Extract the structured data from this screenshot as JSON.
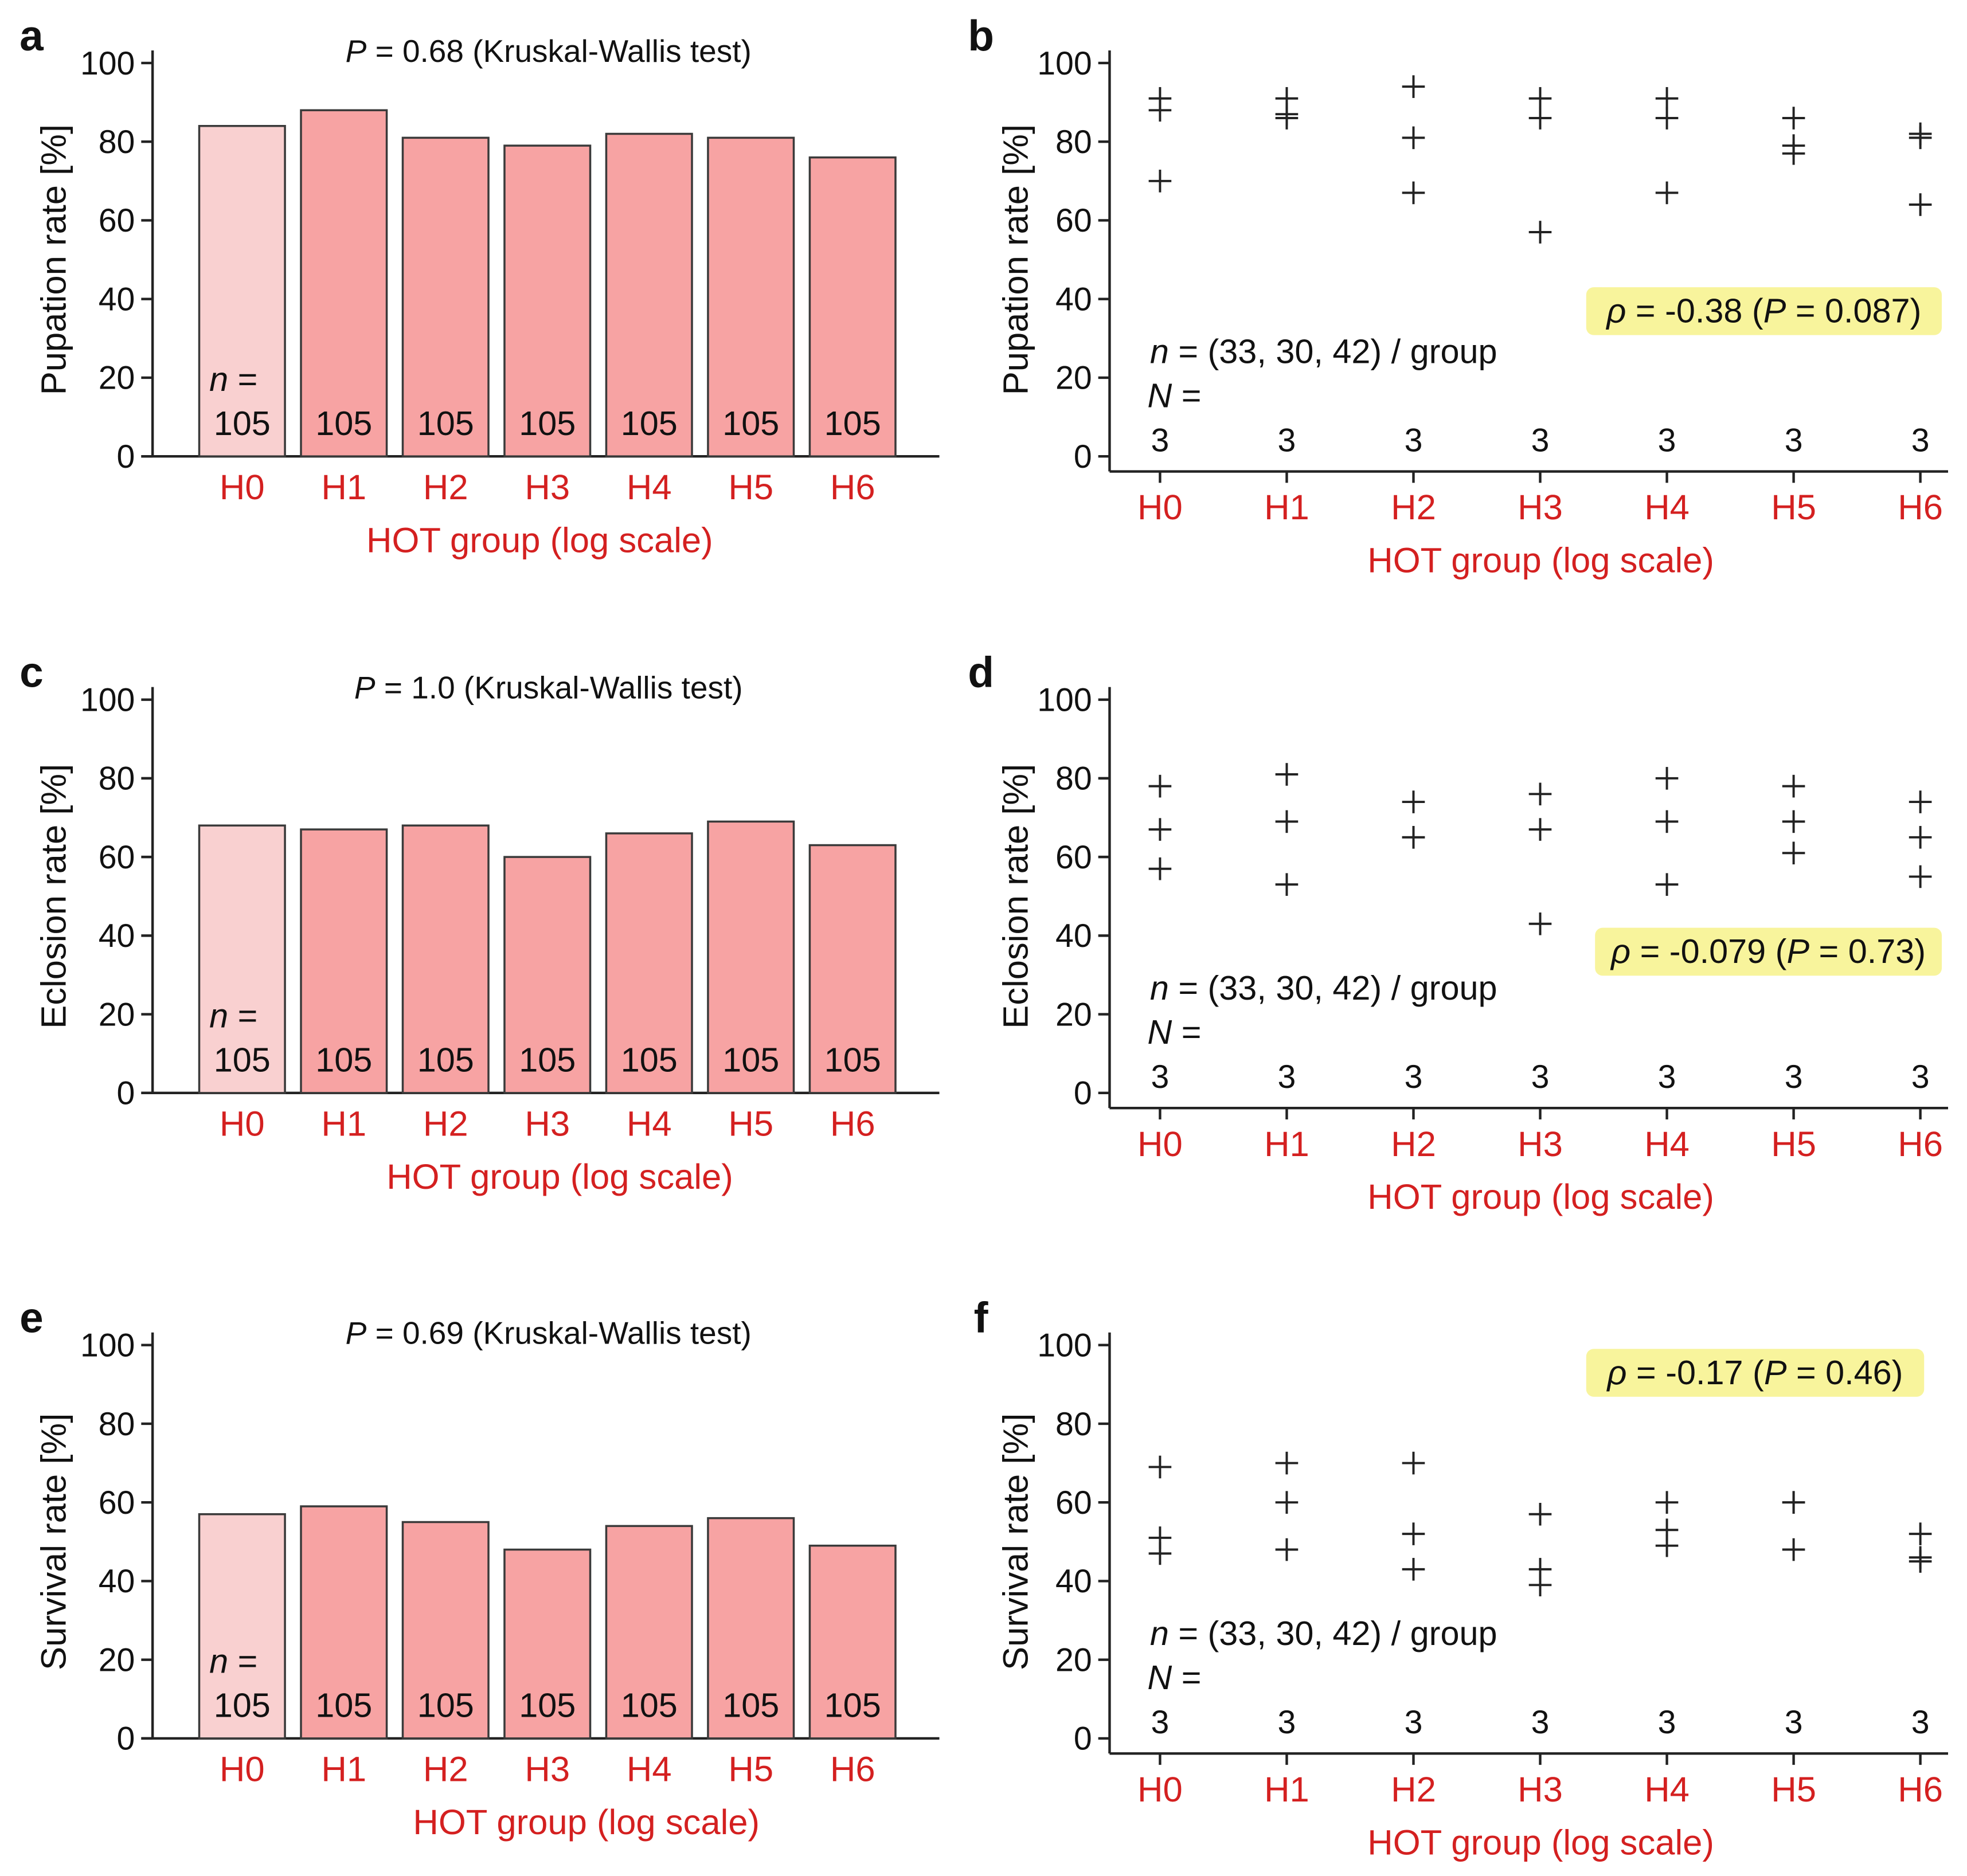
{
  "colors": {
    "bar_control": "#f9d0d0",
    "bar_treated": "#f7a3a3",
    "bar_stroke": "#3a3a3a",
    "red_text": "#d42020",
    "highlight": "#f8f49c",
    "ink": "#111111"
  },
  "chart_data": [
    {
      "panel": "a",
      "type": "bar",
      "title": "P = 0.68 (Kruskal-Wallis test)",
      "title_stat": "P",
      "title_rest": " = 0.68 (Kruskal-Wallis test)",
      "ylabel": "Pupation rate [%]",
      "xlabel": "HOT group (log scale)",
      "categories": [
        "H0",
        "H1",
        "H2",
        "H3",
        "H4",
        "H5",
        "H6"
      ],
      "values": [
        84,
        88,
        81,
        79,
        82,
        81,
        76
      ],
      "ylim": [
        0,
        100
      ],
      "yticks": [
        "0",
        "20",
        "40",
        "60",
        "80",
        "100"
      ],
      "n_prefix": "n",
      "n_eq": " =",
      "n_values": [
        "105",
        "105",
        "105",
        "105",
        "105",
        "105",
        "105"
      ]
    },
    {
      "panel": "b",
      "type": "scatter",
      "ylabel": "Pupation rate [%]",
      "xlabel": "HOT group (log scale)",
      "categories": [
        "H0",
        "H1",
        "H2",
        "H3",
        "H4",
        "H5",
        "H6"
      ],
      "points": [
        [
          91,
          88,
          70
        ],
        [
          91,
          87,
          86
        ],
        [
          94,
          81,
          67
        ],
        [
          91,
          86,
          57
        ],
        [
          91,
          86,
          67
        ],
        [
          86,
          79,
          77
        ],
        [
          82,
          81,
          64
        ]
      ],
      "ylim": [
        0,
        100
      ],
      "yticks": [
        "0",
        "20",
        "40",
        "60",
        "80",
        "100"
      ],
      "rho_label": "ρ",
      "rho_rest": " = -0.38 (",
      "rho_p": "P",
      "rho_end": " = 0.087)",
      "legend_loc": "right",
      "n_prefix": "n",
      "n_rest": " = (33, 30, 42) / group",
      "N_prefix": "N",
      "N_eq": " =",
      "N_values": [
        "3",
        "3",
        "3",
        "3",
        "3",
        "3",
        "3"
      ]
    },
    {
      "panel": "c",
      "type": "bar",
      "title": "P = 1.0 (Kruskal-Wallis test)",
      "title_stat": "P",
      "title_rest": " = 1.0 (Kruskal-Wallis test)",
      "ylabel": "Eclosion rate [%]",
      "xlabel": "HOT group (log scale)",
      "categories": [
        "H0",
        "H1",
        "H2",
        "H3",
        "H4",
        "H5",
        "H6"
      ],
      "values": [
        68,
        67,
        68,
        60,
        66,
        69,
        63
      ],
      "ylim": [
        0,
        100
      ],
      "yticks": [
        "0",
        "20",
        "40",
        "60",
        "80",
        "100"
      ],
      "n_prefix": "n",
      "n_eq": " =",
      "n_values": [
        "105",
        "105",
        "105",
        "105",
        "105",
        "105",
        "105"
      ]
    },
    {
      "panel": "d",
      "type": "scatter",
      "ylabel": "Eclosion rate [%]",
      "xlabel": "HOT group (log scale)",
      "categories": [
        "H0",
        "H1",
        "H2",
        "H3",
        "H4",
        "H5",
        "H6"
      ],
      "points": [
        [
          78,
          67,
          57
        ],
        [
          81,
          69,
          53
        ],
        [
          74,
          65,
          65
        ],
        [
          76,
          67,
          43
        ],
        [
          80,
          69,
          53
        ],
        [
          78,
          69,
          61
        ],
        [
          74,
          65,
          55
        ]
      ],
      "ylim": [
        0,
        100
      ],
      "yticks": [
        "0",
        "20",
        "40",
        "60",
        "80",
        "100"
      ],
      "rho_label": "ρ",
      "rho_rest": " = -0.079 (",
      "rho_p": "P",
      "rho_end": " = 0.73)",
      "legend_loc": "right",
      "n_prefix": "n",
      "n_rest": " = (33, 30, 42) / group",
      "N_prefix": "N",
      "N_eq": " =",
      "N_values": [
        "3",
        "3",
        "3",
        "3",
        "3",
        "3",
        "3"
      ]
    },
    {
      "panel": "e",
      "type": "bar",
      "title": "P = 0.69 (Kruskal-Wallis test)",
      "title_stat": "P",
      "title_rest": " = 0.69 (Kruskal-Wallis test)",
      "ylabel": "Survival rate [%]",
      "xlabel": "HOT group (log scale)",
      "categories": [
        "H0",
        "H1",
        "H2",
        "H3",
        "H4",
        "H5",
        "H6"
      ],
      "values": [
        57,
        59,
        55,
        48,
        54,
        56,
        49
      ],
      "ylim": [
        0,
        100
      ],
      "yticks": [
        "0",
        "20",
        "40",
        "60",
        "80",
        "100"
      ],
      "n_prefix": "n",
      "n_eq": " =",
      "n_values": [
        "105",
        "105",
        "105",
        "105",
        "105",
        "105",
        "105"
      ]
    },
    {
      "panel": "f",
      "type": "scatter",
      "ylabel": "Survival rate [%]",
      "xlabel": "HOT group (log scale)",
      "categories": [
        "H0",
        "H1",
        "H2",
        "H3",
        "H4",
        "H5",
        "H6"
      ],
      "points": [
        [
          69,
          51,
          47
        ],
        [
          70,
          60,
          48
        ],
        [
          70,
          52,
          43
        ],
        [
          57,
          43,
          39
        ],
        [
          60,
          53,
          49
        ],
        [
          60,
          60,
          48
        ],
        [
          52,
          46,
          45
        ]
      ],
      "ylim": [
        0,
        100
      ],
      "yticks": [
        "0",
        "20",
        "40",
        "60",
        "80",
        "100"
      ],
      "rho_label": "ρ",
      "rho_rest": " = -0.17 (",
      "rho_p": "P",
      "rho_end": " = 0.46)",
      "legend_loc": "top-right",
      "n_prefix": "n",
      "n_rest": " = (33, 30, 42) / group",
      "N_prefix": "N",
      "N_eq": " =",
      "N_values": [
        "3",
        "3",
        "3",
        "3",
        "3",
        "3",
        "3"
      ]
    }
  ]
}
